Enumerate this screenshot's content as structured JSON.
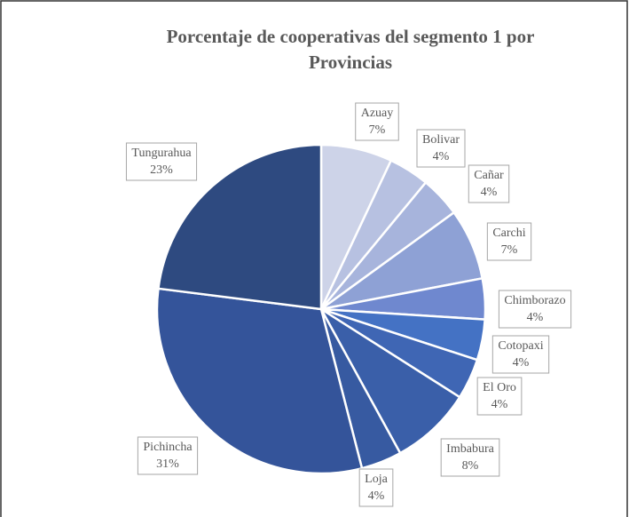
{
  "chart_data": {
    "type": "pie",
    "title": "Porcentaje de cooperativas del segmento 1 por Provincias",
    "categories": [
      "Azuay",
      "Bolivar",
      "Cañar",
      "Carchi",
      "Chimborazo",
      "Cotopaxi",
      "El Oro",
      "Imbabura",
      "Loja",
      "Pichincha",
      "Tungurahua"
    ],
    "values": [
      7,
      4,
      4,
      7,
      4,
      4,
      4,
      8,
      4,
      31,
      23
    ],
    "value_labels": [
      "7%",
      "4%",
      "4%",
      "7%",
      "4%",
      "4%",
      "4%",
      "8%",
      "4%",
      "31%",
      "23%"
    ],
    "colors": [
      "#cdd3e8",
      "#b7c1e1",
      "#a7b4dc",
      "#8ea1d5",
      "#6f88cf",
      "#4472c4",
      "#3f66b4",
      "#3a5fa9",
      "#375aa1",
      "#34549a",
      "#2e4a80"
    ]
  }
}
